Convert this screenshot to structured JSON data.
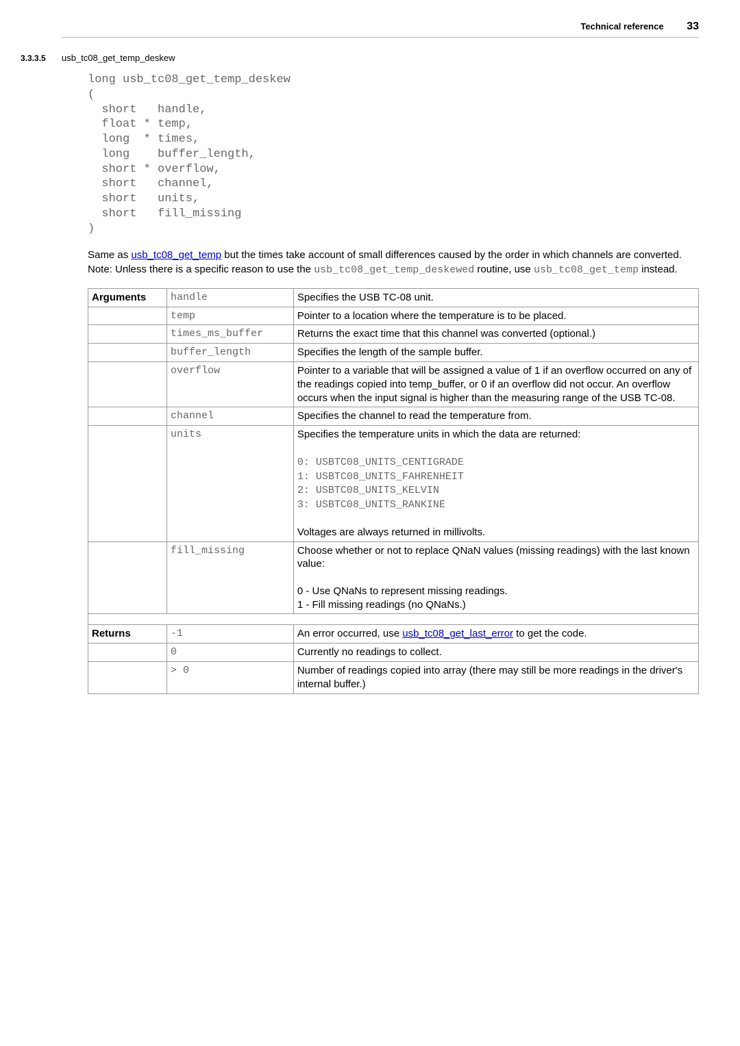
{
  "header": {
    "title": "Technical reference",
    "page_number": "33"
  },
  "section": {
    "number": "3.3.3.5",
    "title": "usb_tc08_get_temp_deskew"
  },
  "code_signature": "long usb_tc08_get_temp_deskew\n(\n  short   handle,\n  float * temp,\n  long  * times,\n  long    buffer_length,\n  short * overflow,\n  short   channel,\n  short   units,\n  short   fill_missing\n)",
  "intro": {
    "t1": "Same as ",
    "link1": "usb_tc08_get_temp",
    "t2": " but the times take account of small differences caused by the order in which channels are converted. Note: Unless there is a specific reason to use the ",
    "mono1": "usb_tc08_get_temp_deskewed",
    "t3": " routine, use ",
    "mono2": "usb_tc08_get_temp",
    "t4": " instead."
  },
  "args_label": "Arguments",
  "returns_label": "Returns",
  "args": {
    "handle": {
      "name": "handle",
      "desc": "Specifies the USB TC-08 unit."
    },
    "temp": {
      "name": "temp",
      "desc": "Pointer to a location where the temperature is to be placed."
    },
    "times_ms_buffer": {
      "name": "times_ms_buffer",
      "desc": "Returns the exact time that this channel was converted (optional.)"
    },
    "buffer_length": {
      "name": "buffer_length",
      "desc": "Specifies the length of the sample buffer."
    },
    "overflow": {
      "name": "overflow",
      "desc": "Pointer to a variable that will be assigned a value of 1 if an overflow occurred on any of the readings copied into temp_buffer, or 0 if an overflow did not occur. An overflow occurs when the input signal is higher than the measuring range of the USB TC-08."
    },
    "channel": {
      "name": "channel",
      "desc": "Specifies the channel to read the temperature from."
    },
    "units": {
      "name": "units",
      "desc1": "Specifies the temperature units in which the data are returned:",
      "codes": "0: USBTC08_UNITS_CENTIGRADE\n1: USBTC08_UNITS_FAHRENHEIT\n2: USBTC08_UNITS_KELVIN\n3: USBTC08_UNITS_RANKINE",
      "desc2": "Voltages are always returned in millivolts."
    },
    "fill_missing": {
      "name": "fill_missing",
      "desc1": "Choose whether or not to replace QNaN values (missing readings) with the last known value:",
      "desc2": "0 - Use QNaNs to represent missing readings.",
      "desc3": "1 - Fill missing readings (no QNaNs.)"
    }
  },
  "returns": {
    "r1": {
      "val": "-1",
      "t1": "An error occurred, use ",
      "link": "usb_tc08_get_last_error",
      "t2": " to get the code."
    },
    "r2": {
      "val": "0",
      "desc": "Currently no readings to collect."
    },
    "r3": {
      "val": "> 0",
      "desc": "Number of readings copied into array (there may still be more readings in the driver's internal buffer.)"
    }
  }
}
